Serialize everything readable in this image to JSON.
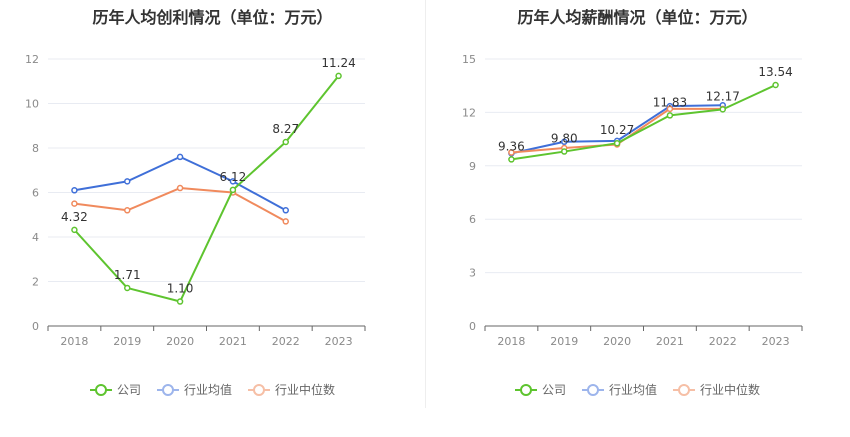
{
  "colors": {
    "company": "#5ec42f",
    "industry_avg": "#3f6fd8",
    "industry_median": "#f08a5d"
  },
  "charts": [
    {
      "title": "历年人均创利情况（单位：万元）",
      "legend": [
        "公司",
        "行业均值",
        "行业中位数"
      ]
    },
    {
      "title": "历年人均薪酬情况（单位：万元）",
      "legend": [
        "公司",
        "行业均值",
        "行业中位数"
      ]
    }
  ],
  "chart_data": [
    {
      "type": "line",
      "title": "历年人均创利情况（单位：万元）",
      "categories": [
        "2018",
        "2019",
        "2020",
        "2021",
        "2022",
        "2023"
      ],
      "ylim": [
        0,
        12
      ],
      "yticks": [
        0,
        2,
        4,
        6,
        8,
        10,
        12
      ],
      "grid": true,
      "legend_position": "bottom",
      "series": [
        {
          "name": "公司",
          "values": [
            4.32,
            1.71,
            1.1,
            6.12,
            8.27,
            11.24
          ],
          "labels": [
            "4.32",
            "1.71",
            "1.10",
            "6.12",
            "8.27",
            "11.24"
          ]
        },
        {
          "name": "行业均值",
          "values": [
            6.1,
            6.5,
            7.6,
            6.5,
            5.2,
            null
          ]
        },
        {
          "name": "行业中位数",
          "values": [
            5.5,
            5.2,
            6.2,
            6.0,
            4.7,
            null
          ]
        }
      ]
    },
    {
      "type": "line",
      "title": "历年人均薪酬情况（单位：万元）",
      "categories": [
        "2018",
        "2019",
        "2020",
        "2021",
        "2022",
        "2023"
      ],
      "ylim": [
        0,
        15
      ],
      "yticks": [
        0,
        3,
        6,
        9,
        12,
        15
      ],
      "grid": true,
      "legend_position": "bottom",
      "series": [
        {
          "name": "公司",
          "values": [
            9.36,
            9.8,
            10.27,
            11.83,
            12.17,
            13.54
          ],
          "labels": [
            "9.36",
            "9.80",
            "10.27",
            "11.83",
            "12.17",
            "13.54"
          ]
        },
        {
          "name": "行业均值",
          "values": [
            9.7,
            10.35,
            10.4,
            12.35,
            12.4,
            null
          ]
        },
        {
          "name": "行业中位数",
          "values": [
            9.75,
            10.0,
            10.2,
            12.2,
            12.2,
            null
          ]
        }
      ]
    }
  ]
}
